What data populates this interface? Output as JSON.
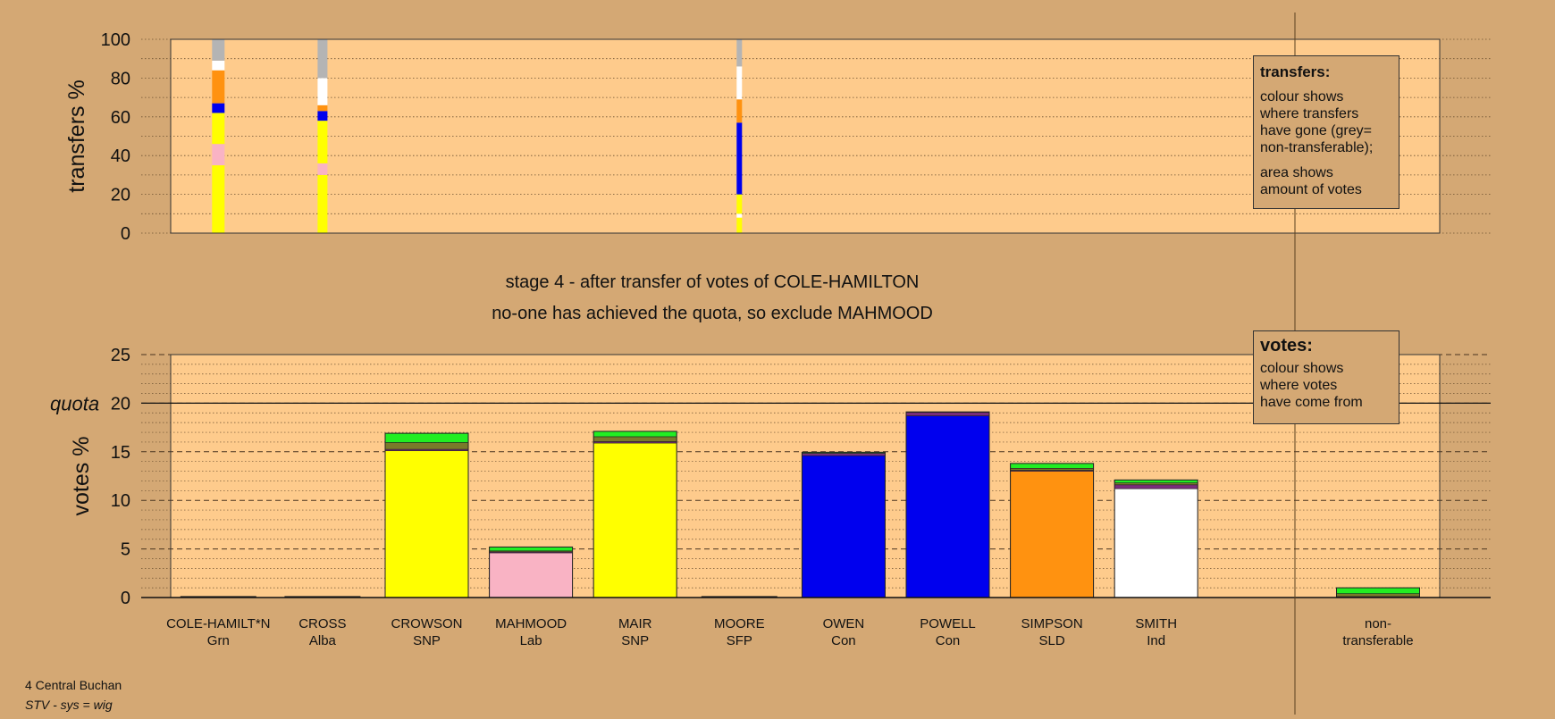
{
  "colors": {
    "page_bg": "#D4A874",
    "plot_bg": "#FECB8C",
    "grn": "#22EE22",
    "alba": "#7A7A2A",
    "snp": "#FFFF00",
    "lab": "#F9B3C4",
    "sfp": "#7B2D7B",
    "con": "#0000EE",
    "sld": "#FF9210",
    "ind": "#FFFFFF",
    "nontransferable": "#B4B4B4"
  },
  "stage_title": "stage 4 - after transfer of votes of COLE-HAMILTON",
  "stage_note": "no-one has achieved the quota, so exclude MAHMOOD",
  "transfers_legend": {
    "heading": "transfers:",
    "body1": "colour shows\nwhere transfers\nhave gone (grey=\nnon-transferable);",
    "body2": "area shows\namount of votes"
  },
  "votes_legend": {
    "heading": "votes:",
    "body": "colour shows\nwhere votes\nhave come from"
  },
  "footer": {
    "area": "4 Central Buchan",
    "system": "STV - sys = wig"
  },
  "chart_data": [
    {
      "type": "bar",
      "ylabel": "transfers %",
      "ylim": [
        0,
        100
      ],
      "yticks": [
        0,
        20,
        40,
        60,
        80,
        100
      ],
      "grid": true,
      "note": "100% stacked columns; column width proportional to votes transferred",
      "categories": [
        "COLE-HAMILT*N",
        "CROSS",
        "MOORE"
      ],
      "columns": [
        {
          "category": "COLE-HAMILT*N",
          "segments": [
            {
              "party": "snp",
              "from": 0,
              "to": 35
            },
            {
              "party": "lab",
              "from": 35,
              "to": 46
            },
            {
              "party": "snp",
              "from": 46,
              "to": 62
            },
            {
              "party": "con",
              "from": 62,
              "to": 67
            },
            {
              "party": "sld",
              "from": 67,
              "to": 84
            },
            {
              "party": "ind",
              "from": 84,
              "to": 89
            },
            {
              "party": "nontransferable",
              "from": 89,
              "to": 100
            }
          ]
        },
        {
          "category": "CROSS",
          "segments": [
            {
              "party": "snp",
              "from": 0,
              "to": 30
            },
            {
              "party": "lab",
              "from": 30,
              "to": 36
            },
            {
              "party": "snp",
              "from": 36,
              "to": 58
            },
            {
              "party": "con",
              "from": 58,
              "to": 63
            },
            {
              "party": "sld",
              "from": 63,
              "to": 66
            },
            {
              "party": "ind",
              "from": 66,
              "to": 80
            },
            {
              "party": "nontransferable",
              "from": 80,
              "to": 100
            }
          ]
        },
        {
          "category": "MOORE",
          "segments": [
            {
              "party": "snp",
              "from": 0,
              "to": 8
            },
            {
              "party": "ind",
              "from": 8,
              "to": 10
            },
            {
              "party": "snp",
              "from": 10,
              "to": 20
            },
            {
              "party": "con",
              "from": 20,
              "to": 57
            },
            {
              "party": "sld",
              "from": 57,
              "to": 69
            },
            {
              "party": "ind",
              "from": 69,
              "to": 86
            },
            {
              "party": "nontransferable",
              "from": 86,
              "to": 100
            }
          ]
        }
      ]
    },
    {
      "type": "bar",
      "ylabel": "votes %",
      "ylim": [
        0,
        25
      ],
      "yticks": [
        0,
        5,
        10,
        15,
        20,
        25
      ],
      "quota": 20,
      "quota_label": "quota",
      "grid": true,
      "categories": [
        {
          "name": "COLE-HAMILT*N",
          "party": "Grn"
        },
        {
          "name": "CROSS",
          "party": "Alba"
        },
        {
          "name": "CROWSON",
          "party": "SNP"
        },
        {
          "name": "MAHMOOD",
          "party": "Lab"
        },
        {
          "name": "MAIR",
          "party": "SNP"
        },
        {
          "name": "MOORE",
          "party": "SFP"
        },
        {
          "name": "OWEN",
          "party": "Con"
        },
        {
          "name": "POWELL",
          "party": "Con"
        },
        {
          "name": "SIMPSON",
          "party": "SLD"
        },
        {
          "name": "SMITH",
          "party": "Ind"
        }
      ],
      "nontransferable_label": "non-\ntransferable",
      "stacks": [
        [],
        [],
        [
          {
            "party": "snp",
            "value": 15.1
          },
          {
            "party": "sfp",
            "value": 0.15
          },
          {
            "party": "alba",
            "value": 0.7
          },
          {
            "party": "grn",
            "value": 0.95
          }
        ],
        [
          {
            "party": "lab",
            "value": 4.6
          },
          {
            "party": "sfp",
            "value": 0.1
          },
          {
            "party": "alba",
            "value": 0.1
          },
          {
            "party": "grn",
            "value": 0.4
          }
        ],
        [
          {
            "party": "snp",
            "value": 15.9
          },
          {
            "party": "sfp",
            "value": 0.15
          },
          {
            "party": "alba",
            "value": 0.5
          },
          {
            "party": "grn",
            "value": 0.55
          }
        ],
        [],
        [
          {
            "party": "con",
            "value": 14.6
          },
          {
            "party": "sfp",
            "value": 0.25
          },
          {
            "party": "grn",
            "value": 0.1
          }
        ],
        [
          {
            "party": "con",
            "value": 18.7
          },
          {
            "party": "sfp",
            "value": 0.35
          },
          {
            "party": "grn",
            "value": 0.05
          }
        ],
        [
          {
            "party": "sld",
            "value": 13.0
          },
          {
            "party": "sfp",
            "value": 0.1
          },
          {
            "party": "alba",
            "value": 0.2
          },
          {
            "party": "grn",
            "value": 0.5
          }
        ],
        [
          {
            "party": "ind",
            "value": 11.2
          },
          {
            "party": "sfp",
            "value": 0.4
          },
          {
            "party": "alba",
            "value": 0.2
          },
          {
            "party": "grn",
            "value": 0.3
          }
        ]
      ],
      "nontransferable_stack": [
        {
          "party": "sfp",
          "value": 0.1
        },
        {
          "party": "alba",
          "value": 0.3
        },
        {
          "party": "grn",
          "value": 0.6
        }
      ]
    }
  ]
}
